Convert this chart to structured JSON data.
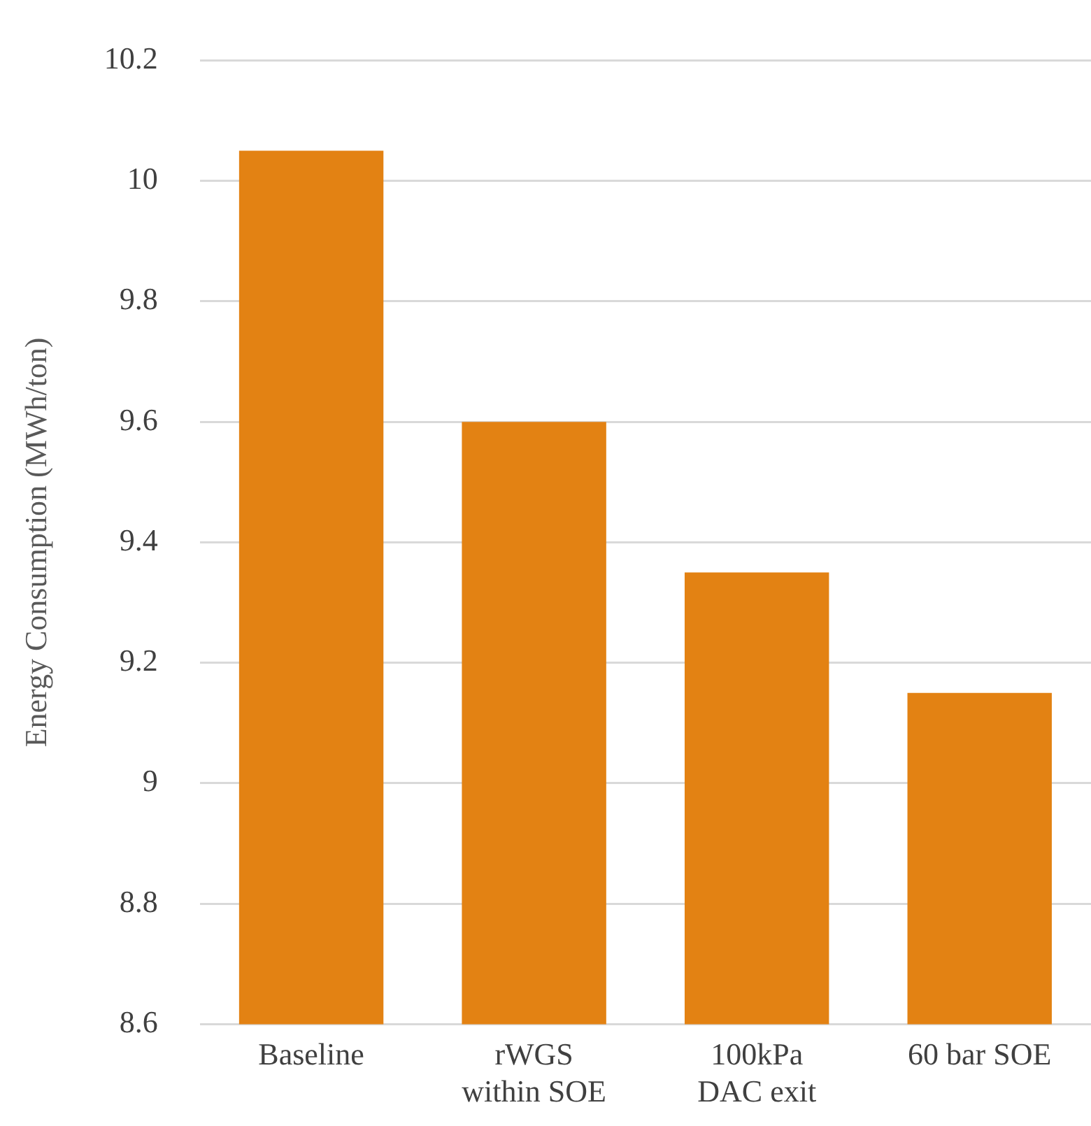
{
  "chart_data": {
    "type": "bar",
    "ylabel": "Energy Consumption (MWh/ton)",
    "categories": [
      "Baseline",
      "rWGS\nwithin SOE",
      "100kPa\nDAC exit",
      "60 bar SOE"
    ],
    "values": [
      10.05,
      9.6,
      9.35,
      9.15
    ],
    "color": "#e38213",
    "ylim": [
      8.6,
      10.2
    ],
    "yticks": [
      8.6,
      8.8,
      9,
      9.2,
      9.4,
      9.6,
      9.8,
      10,
      10.2
    ],
    "grid": "y"
  }
}
